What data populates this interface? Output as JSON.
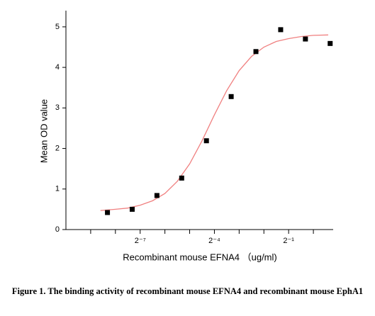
{
  "chart_data": {
    "type": "scatter",
    "xlabel": "Recombinant mouse EFNA4 （ug/ml)",
    "ylabel": "Mean OD value",
    "caption": "Figure 1. The binding activity of recombinant mouse EFNA4 and recombinant mouse EphA1",
    "xscale": "log2",
    "xlim": [
      0.0009765625,
      1.741
    ],
    "ylim": [
      0,
      5.4
    ],
    "xticks": [
      {
        "value": 0.0078125,
        "label": "2⁻⁷"
      },
      {
        "value": 0.0625,
        "label": "2⁻⁴"
      },
      {
        "value": 0.5,
        "label": "2⁻¹"
      }
    ],
    "xminorticks": [
      0.001953125,
      0.00390625,
      0.015625,
      0.03125,
      0.125,
      0.25,
      1
    ],
    "yticks": [
      0,
      1,
      2,
      3,
      4,
      5
    ],
    "series": [
      {
        "color": "#000000",
        "x": [
          0.003125,
          0.00625,
          0.0125,
          0.025,
          0.05,
          0.1,
          0.2,
          0.4,
          0.8,
          1.6
        ],
        "values": [
          0.42,
          0.5,
          0.84,
          1.27,
          2.19,
          3.28,
          4.39,
          4.93,
          4.7,
          4.59
        ]
      }
    ],
    "fit_curve": {
      "color": "#f08080",
      "x": [
        0.00257,
        0.00390625,
        0.00552,
        0.0078125,
        0.01105,
        0.015625,
        0.0221,
        0.03125,
        0.0442,
        0.0625,
        0.0884,
        0.125,
        0.1768,
        0.25,
        0.3536,
        0.5,
        0.7071,
        1,
        1.516
      ],
      "values": [
        0.47,
        0.5,
        0.53,
        0.6,
        0.71,
        0.89,
        1.19,
        1.62,
        2.19,
        2.83,
        3.43,
        3.92,
        4.27,
        4.5,
        4.64,
        4.71,
        4.76,
        4.79,
        4.8
      ]
    }
  }
}
